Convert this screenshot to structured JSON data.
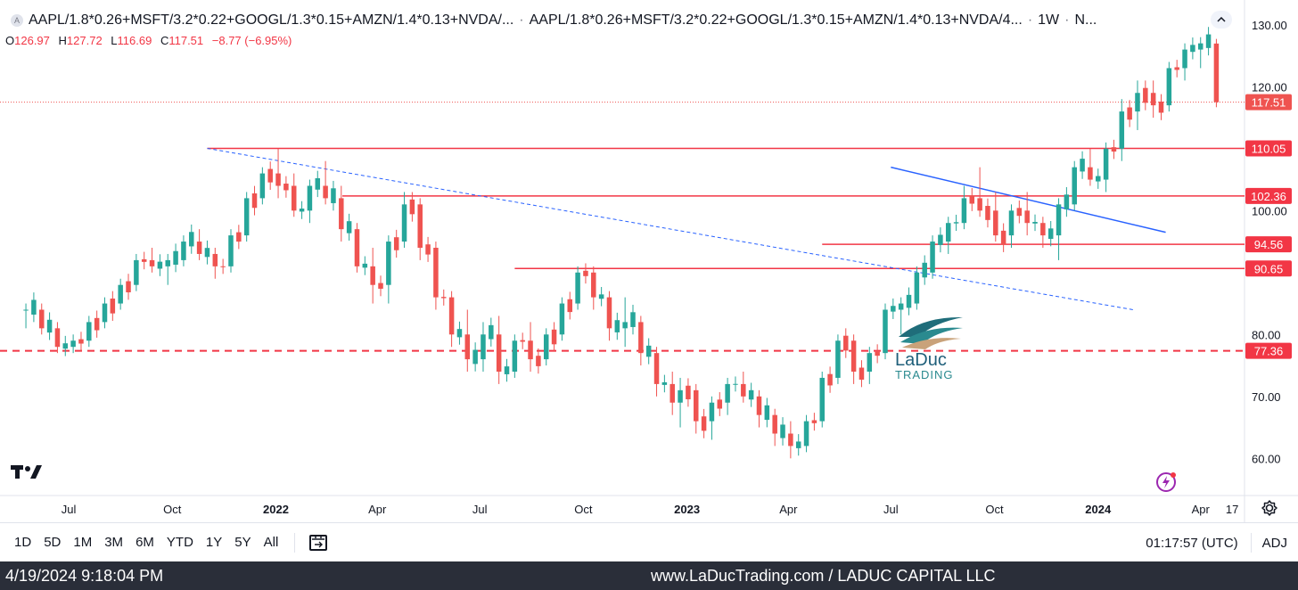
{
  "header": {
    "symbol": "AAPL/1.8*0.26+MSFT/3.2*0.22+GOOGL/1.3*0.15+AMZN/1.4*0.13+NVDA/...",
    "symbol2": "AAPL/1.8*0.26+MSFT/3.2*0.22+GOOGL/1.3*0.15+AMZN/1.4*0.13+NVDA/4...",
    "interval": "1W",
    "exchange": "N...",
    "logo_letter": "A",
    "collapse_icon": "chevron-up-icon"
  },
  "ohlc": {
    "o_label": "O",
    "o": "126.97",
    "h_label": "H",
    "h": "127.72",
    "l_label": "L",
    "l": "116.69",
    "c_label": "C",
    "c": "117.51",
    "change": "−8.77 (−6.95%)"
  },
  "watermark": {
    "brand": "LaDuc",
    "sub": "TRADING"
  },
  "toolbar": {
    "timeframes": [
      "1D",
      "5D",
      "1M",
      "3M",
      "6M",
      "YTD",
      "1Y",
      "5Y",
      "All"
    ],
    "clock": "01:17:57 (UTC)",
    "adj": "ADJ"
  },
  "footer": {
    "datetime": "4/19/2024 9:18:04 PM",
    "site": "www.LaDucTrading.com / LADUC CAPITAL LLC"
  },
  "colors": {
    "up": "#26a69a",
    "down": "#ef5350",
    "level": "#f23645",
    "trend": "#2962ff"
  },
  "chart_data": {
    "type": "candlestick",
    "interval": "1W",
    "ylim": [
      54,
      134
    ],
    "y_ticks": [
      60,
      70,
      80,
      100,
      120,
      130
    ],
    "y_tick_labels": [
      "60.00",
      "70.00",
      "80.00",
      "100.00",
      "120.00",
      "130.00"
    ],
    "x_ticks": [
      "Jul",
      "Oct",
      "2022",
      "Apr",
      "Jul",
      "Oct",
      "2023",
      "Apr",
      "Jul",
      "Oct",
      "2024",
      "Apr",
      "17"
    ],
    "last_price": "117.51",
    "levels": [
      {
        "value": 110.05,
        "label": "110.05",
        "style": "solid",
        "start": "2021-11"
      },
      {
        "value": 102.36,
        "label": "102.36",
        "style": "solid",
        "start": "2022-03"
      },
      {
        "value": 94.56,
        "label": "94.56",
        "style": "solid",
        "start": "2023-05"
      },
      {
        "value": 90.65,
        "label": "90.65",
        "style": "solid",
        "start": "2022-08"
      },
      {
        "value": 77.36,
        "label": "77.36",
        "style": "dashed",
        "start": "2021-05"
      }
    ],
    "trendlines": [
      {
        "from": [
          "2021-11",
          110.05
        ],
        "to": [
          "2024-02",
          84.0
        ],
        "style": "dashed"
      },
      {
        "from": [
          "2023-07",
          107.0
        ],
        "to": [
          "2024-03",
          96.5
        ],
        "style": "solid"
      }
    ],
    "candles": [
      [
        "2021-05-24",
        84,
        85,
        81,
        84
      ],
      [
        "2021-06-07",
        84,
        85,
        80,
        81
      ],
      [
        "2021-06-21",
        81,
        82,
        77,
        78
      ],
      [
        "2021-07-05",
        78,
        80,
        77,
        79
      ],
      [
        "2021-07-19",
        79,
        83,
        78,
        82
      ],
      [
        "2021-08-02",
        82,
        86,
        81,
        85
      ],
      [
        "2021-08-16",
        85,
        89,
        84,
        88
      ],
      [
        "2021-08-30",
        88,
        93,
        87,
        92
      ],
      [
        "2021-09-13",
        92,
        94,
        90,
        91
      ],
      [
        "2021-09-27",
        91,
        93,
        88,
        92
      ],
      [
        "2021-10-11",
        92,
        96,
        91,
        95
      ],
      [
        "2021-10-25",
        95,
        97,
        92,
        93
      ],
      [
        "2021-11-08",
        93,
        94,
        89,
        91
      ],
      [
        "2021-11-22",
        91,
        97,
        90,
        96
      ],
      [
        "2021-12-06",
        96,
        103,
        95,
        102
      ],
      [
        "2021-12-20",
        102,
        107,
        101,
        106
      ],
      [
        "2022-01-03",
        106,
        110,
        102,
        104
      ],
      [
        "2022-01-17",
        104,
        106,
        99,
        100
      ],
      [
        "2022-01-31",
        100,
        105,
        98,
        104
      ],
      [
        "2022-02-14",
        104,
        108,
        101,
        102
      ],
      [
        "2022-02-28",
        102,
        104,
        95,
        97
      ],
      [
        "2022-03-14",
        97,
        98,
        90,
        91
      ],
      [
        "2022-03-28",
        91,
        94,
        85,
        88
      ],
      [
        "2022-04-11",
        88,
        96,
        85,
        95
      ],
      [
        "2022-04-25",
        95,
        103,
        94,
        101
      ],
      [
        "2022-05-09",
        101,
        102,
        92,
        94
      ],
      [
        "2022-05-23",
        94,
        95,
        84,
        86
      ],
      [
        "2022-06-06",
        86,
        87,
        78,
        80
      ],
      [
        "2022-06-20",
        80,
        84,
        74,
        76
      ],
      [
        "2022-07-04",
        76,
        82,
        74,
        80
      ],
      [
        "2022-07-18",
        80,
        83,
        72,
        74
      ],
      [
        "2022-08-01",
        74,
        80,
        73,
        79
      ],
      [
        "2022-08-15",
        79,
        82,
        74,
        76
      ],
      [
        "2022-08-29",
        76,
        81,
        75,
        80
      ],
      [
        "2022-09-12",
        80,
        86,
        79,
        85
      ],
      [
        "2022-09-26",
        85,
        91,
        84,
        90
      ],
      [
        "2022-10-10",
        90,
        91,
        84,
        86
      ],
      [
        "2022-10-24",
        86,
        87,
        79,
        81
      ],
      [
        "2022-11-07",
        81,
        86,
        78,
        82
      ],
      [
        "2022-11-21",
        82,
        83,
        75,
        77
      ],
      [
        "2022-12-05",
        77,
        78,
        70,
        72
      ],
      [
        "2022-12-19",
        72,
        74,
        67,
        69
      ],
      [
        "2022-12-26",
        69,
        73,
        65,
        71
      ],
      [
        "2023-01-09",
        71,
        72,
        64,
        66
      ],
      [
        "2023-01-23",
        66,
        70,
        63,
        69
      ],
      [
        "2023-02-06",
        69,
        73,
        67,
        72
      ],
      [
        "2023-02-20",
        72,
        74,
        69,
        70
      ],
      [
        "2023-03-06",
        70,
        71,
        65,
        67
      ],
      [
        "2023-03-20",
        67,
        68,
        62,
        64
      ],
      [
        "2023-04-03",
        64,
        66,
        60,
        62
      ],
      [
        "2023-04-17",
        62,
        67,
        61,
        66
      ],
      [
        "2023-05-01",
        66,
        74,
        65,
        73
      ],
      [
        "2023-05-15",
        73,
        80,
        72,
        79
      ],
      [
        "2023-05-29",
        79,
        80,
        72,
        74
      ],
      [
        "2023-06-12",
        74,
        78,
        72,
        77
      ],
      [
        "2023-06-26",
        77,
        85,
        76,
        84
      ],
      [
        "2023-07-10",
        84,
        86,
        80,
        85
      ],
      [
        "2023-07-24",
        85,
        91,
        84,
        90
      ],
      [
        "2023-08-07",
        90,
        96,
        89,
        95
      ],
      [
        "2023-08-21",
        95,
        99,
        93,
        98
      ],
      [
        "2023-09-04",
        98,
        104,
        97,
        102
      ],
      [
        "2023-09-18",
        102,
        107,
        99,
        100
      ],
      [
        "2023-10-02",
        100,
        103,
        95,
        96
      ],
      [
        "2023-10-16",
        96,
        101,
        94,
        100
      ],
      [
        "2023-10-30",
        100,
        103,
        96,
        98
      ],
      [
        "2023-11-13",
        98,
        99,
        94,
        96
      ],
      [
        "2023-11-27",
        96,
        102,
        92,
        101
      ],
      [
        "2023-12-11",
        101,
        108,
        100,
        107
      ],
      [
        "2023-12-25",
        107,
        110,
        104,
        105
      ],
      [
        "2024-01-08",
        105,
        111,
        103,
        110
      ],
      [
        "2024-01-22",
        110,
        118,
        108,
        116
      ],
      [
        "2024-02-05",
        116,
        121,
        113,
        119
      ],
      [
        "2024-02-19",
        119,
        121,
        115,
        117
      ],
      [
        "2024-03-04",
        117,
        124,
        116,
        123
      ],
      [
        "2024-03-18",
        123,
        127,
        121,
        126
      ],
      [
        "2024-04-01",
        126,
        128,
        123,
        127
      ],
      [
        "2024-04-15",
        126.97,
        127.72,
        116.69,
        117.51
      ]
    ]
  }
}
